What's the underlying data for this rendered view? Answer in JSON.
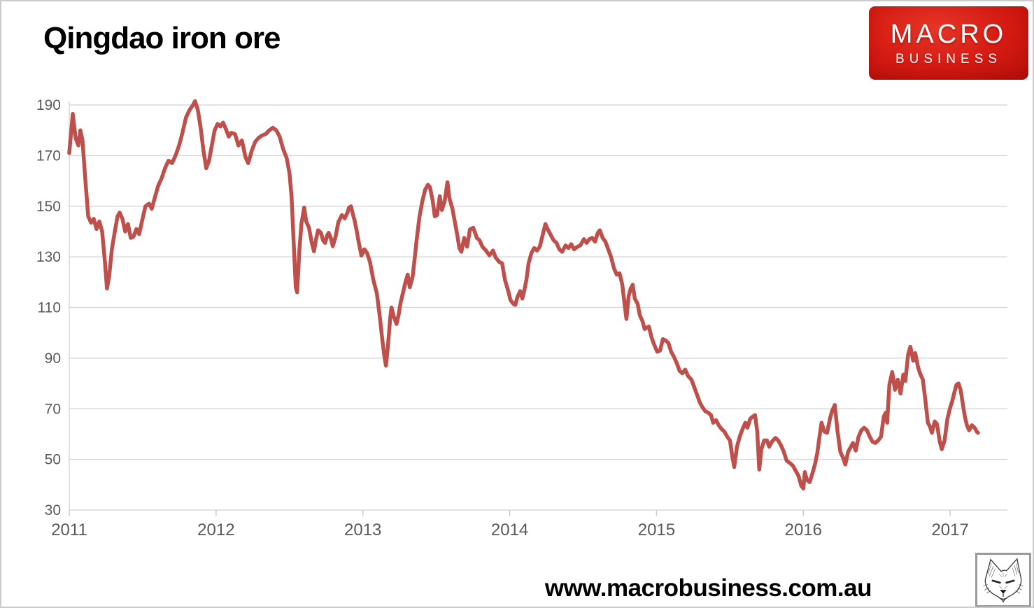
{
  "header": {
    "title": "Qingdao iron ore"
  },
  "logo": {
    "line1": "MACRO",
    "line2": "BUSINESS",
    "text_color": "#ffffff",
    "bg_gradient": [
      "#e73527",
      "#d41a12",
      "#b90f0a"
    ]
  },
  "footer": {
    "url": "www.macrobusiness.com.au",
    "icon": "fox-sketch-icon"
  },
  "chart_data": {
    "type": "line",
    "title": "Qingdao iron ore",
    "series_name": "Qingdao iron ore price",
    "xlabel": "",
    "ylabel": "",
    "x_ticks": [
      2011,
      2012,
      2013,
      2014,
      2015,
      2016,
      2017
    ],
    "y_ticks": [
      30,
      50,
      70,
      90,
      110,
      130,
      150,
      170,
      190
    ],
    "xlim": [
      2011,
      2017.39
    ],
    "ylim": [
      30,
      190
    ],
    "grid": true,
    "legend": false,
    "line_color": "#bf4f4b",
    "line_width": 5.5,
    "grid_color": "#d9d9d9",
    "tick_color": "#c9c9c9",
    "axis_label_color": "#595959",
    "points": [
      [
        2011.0,
        171
      ],
      [
        2011.014,
        180
      ],
      [
        2011.024,
        186.5
      ],
      [
        2011.043,
        177
      ],
      [
        2011.062,
        174
      ],
      [
        2011.076,
        180
      ],
      [
        2011.09,
        176
      ],
      [
        2011.11,
        160
      ],
      [
        2011.129,
        146
      ],
      [
        2011.148,
        143.5
      ],
      [
        2011.167,
        145
      ],
      [
        2011.186,
        141
      ],
      [
        2011.205,
        144
      ],
      [
        2011.224,
        140
      ],
      [
        2011.243,
        128
      ],
      [
        2011.257,
        117.5
      ],
      [
        2011.271,
        122
      ],
      [
        2011.29,
        133
      ],
      [
        2011.31,
        140
      ],
      [
        2011.329,
        146
      ],
      [
        2011.343,
        147.5
      ],
      [
        2011.362,
        145
      ],
      [
        2011.381,
        140
      ],
      [
        2011.4,
        143
      ],
      [
        2011.419,
        137.5
      ],
      [
        2011.438,
        138
      ],
      [
        2011.457,
        141
      ],
      [
        2011.476,
        139
      ],
      [
        2011.495,
        144
      ],
      [
        2011.519,
        150
      ],
      [
        2011.543,
        151
      ],
      [
        2011.562,
        149
      ],
      [
        2011.581,
        153
      ],
      [
        2011.605,
        158
      ],
      [
        2011.629,
        161
      ],
      [
        2011.652,
        165
      ],
      [
        2011.676,
        168
      ],
      [
        2011.7,
        167
      ],
      [
        2011.724,
        170
      ],
      [
        2011.748,
        174
      ],
      [
        2011.771,
        179
      ],
      [
        2011.795,
        185
      ],
      [
        2011.819,
        188
      ],
      [
        2011.843,
        190
      ],
      [
        2011.857,
        191.5
      ],
      [
        2011.876,
        188
      ],
      [
        2011.895,
        181
      ],
      [
        2011.914,
        172
      ],
      [
        2011.933,
        165
      ],
      [
        2011.952,
        168
      ],
      [
        2011.971,
        174
      ],
      [
        2011.99,
        180
      ],
      [
        2012.01,
        182.5
      ],
      [
        2012.029,
        181.5
      ],
      [
        2012.048,
        183
      ],
      [
        2012.067,
        180.5
      ],
      [
        2012.086,
        177.5
      ],
      [
        2012.105,
        179
      ],
      [
        2012.129,
        178.5
      ],
      [
        2012.152,
        174
      ],
      [
        2012.176,
        176
      ],
      [
        2012.2,
        169.5
      ],
      [
        2012.219,
        167
      ],
      [
        2012.243,
        172
      ],
      [
        2012.267,
        175.5
      ],
      [
        2012.29,
        177
      ],
      [
        2012.314,
        178
      ],
      [
        2012.338,
        178.5
      ],
      [
        2012.362,
        180
      ],
      [
        2012.386,
        181
      ],
      [
        2012.41,
        180
      ],
      [
        2012.433,
        177.5
      ],
      [
        2012.457,
        172.5
      ],
      [
        2012.481,
        169
      ],
      [
        2012.5,
        163
      ],
      [
        2012.514,
        154
      ],
      [
        2012.529,
        135
      ],
      [
        2012.543,
        118
      ],
      [
        2012.552,
        116
      ],
      [
        2012.567,
        132
      ],
      [
        2012.581,
        143
      ],
      [
        2012.6,
        149.5
      ],
      [
        2012.614,
        144
      ],
      [
        2012.633,
        141.5
      ],
      [
        2012.652,
        135.5
      ],
      [
        2012.667,
        132.2
      ],
      [
        2012.681,
        137
      ],
      [
        2012.695,
        140.5
      ],
      [
        2012.714,
        139.5
      ],
      [
        2012.729,
        136.5
      ],
      [
        2012.743,
        135.5
      ],
      [
        2012.757,
        138.5
      ],
      [
        2012.767,
        139.5
      ],
      [
        2012.781,
        137.5
      ],
      [
        2012.795,
        134.2
      ],
      [
        2012.814,
        138
      ],
      [
        2012.833,
        143.8
      ],
      [
        2012.857,
        146.5
      ],
      [
        2012.876,
        145.2
      ],
      [
        2012.895,
        147.5
      ],
      [
        2012.905,
        149.4
      ],
      [
        2012.919,
        150
      ],
      [
        2012.933,
        146.5
      ],
      [
        2012.943,
        144.5
      ],
      [
        2012.957,
        140.5
      ],
      [
        2012.971,
        136
      ],
      [
        2012.99,
        130.5
      ],
      [
        2013.01,
        133
      ],
      [
        2013.029,
        131.5
      ],
      [
        2013.048,
        128
      ],
      [
        2013.071,
        121
      ],
      [
        2013.095,
        115.5
      ],
      [
        2013.114,
        107
      ],
      [
        2013.133,
        97
      ],
      [
        2013.148,
        90
      ],
      [
        2013.157,
        87
      ],
      [
        2013.171,
        95
      ],
      [
        2013.186,
        106
      ],
      [
        2013.195,
        110
      ],
      [
        2013.21,
        106.5
      ],
      [
        2013.229,
        103.5
      ],
      [
        2013.243,
        107
      ],
      [
        2013.257,
        112
      ],
      [
        2013.276,
        116.5
      ],
      [
        2013.29,
        120
      ],
      [
        2013.305,
        123
      ],
      [
        2013.319,
        118
      ],
      [
        2013.338,
        122
      ],
      [
        2013.352,
        129
      ],
      [
        2013.367,
        137
      ],
      [
        2013.386,
        146
      ],
      [
        2013.405,
        152
      ],
      [
        2013.424,
        156.5
      ],
      [
        2013.443,
        158.5
      ],
      [
        2013.457,
        157.5
      ],
      [
        2013.476,
        152
      ],
      [
        2013.49,
        146
      ],
      [
        2013.505,
        146.5
      ],
      [
        2013.524,
        154
      ],
      [
        2013.538,
        148.5
      ],
      [
        2013.557,
        152
      ],
      [
        2013.576,
        159.5
      ],
      [
        2013.59,
        153
      ],
      [
        2013.61,
        149
      ],
      [
        2013.629,
        143
      ],
      [
        2013.643,
        138.5
      ],
      [
        2013.657,
        133.5
      ],
      [
        2013.671,
        132
      ],
      [
        2013.69,
        137.5
      ],
      [
        2013.71,
        134
      ],
      [
        2013.729,
        140.8
      ],
      [
        2013.752,
        141.5
      ],
      [
        2013.776,
        137.5
      ],
      [
        2013.795,
        136.5
      ],
      [
        2013.814,
        134
      ],
      [
        2013.838,
        132.5
      ],
      [
        2013.862,
        130.6
      ],
      [
        2013.886,
        132.5
      ],
      [
        2013.905,
        129.7
      ],
      [
        2013.929,
        128
      ],
      [
        2013.948,
        127.5
      ],
      [
        2013.967,
        121
      ],
      [
        2013.99,
        116.5
      ],
      [
        2014.005,
        113
      ],
      [
        2014.024,
        111.5
      ],
      [
        2014.038,
        111
      ],
      [
        2014.052,
        114
      ],
      [
        2014.071,
        116.5
      ],
      [
        2014.086,
        113.5
      ],
      [
        2014.1,
        117
      ],
      [
        2014.114,
        121
      ],
      [
        2014.129,
        127.5
      ],
      [
        2014.148,
        131.5
      ],
      [
        2014.167,
        133.5
      ],
      [
        2014.186,
        132.5
      ],
      [
        2014.205,
        134
      ],
      [
        2014.224,
        138.5
      ],
      [
        2014.243,
        143
      ],
      [
        2014.262,
        140.5
      ],
      [
        2014.281,
        138.5
      ],
      [
        2014.3,
        136.5
      ],
      [
        2014.319,
        135.5
      ],
      [
        2014.338,
        133
      ],
      [
        2014.357,
        132
      ],
      [
        2014.381,
        134.5
      ],
      [
        2014.4,
        133.5
      ],
      [
        2014.419,
        135
      ],
      [
        2014.438,
        133
      ],
      [
        2014.462,
        134
      ],
      [
        2014.481,
        134.5
      ],
      [
        2014.505,
        137
      ],
      [
        2014.524,
        135.5
      ],
      [
        2014.543,
        137
      ],
      [
        2014.562,
        137.5
      ],
      [
        2014.581,
        136
      ],
      [
        2014.6,
        139.5
      ],
      [
        2014.614,
        140.5
      ],
      [
        2014.633,
        137.5
      ],
      [
        2014.652,
        136
      ],
      [
        2014.671,
        133
      ],
      [
        2014.69,
        130
      ],
      [
        2014.71,
        125.5
      ],
      [
        2014.729,
        123
      ],
      [
        2014.748,
        123.5
      ],
      [
        2014.767,
        119
      ],
      [
        2014.781,
        112
      ],
      [
        2014.795,
        105.5
      ],
      [
        2014.81,
        114.5
      ],
      [
        2014.824,
        117.5
      ],
      [
        2014.838,
        119
      ],
      [
        2014.852,
        113.5
      ],
      [
        2014.871,
        111.5
      ],
      [
        2014.886,
        107
      ],
      [
        2014.905,
        104.5
      ],
      [
        2014.919,
        101.5
      ],
      [
        2014.933,
        102
      ],
      [
        2014.948,
        102.5
      ],
      [
        2014.967,
        98
      ],
      [
        2014.986,
        95
      ],
      [
        2015.005,
        92.5
      ],
      [
        2015.024,
        93
      ],
      [
        2015.043,
        97.5
      ],
      [
        2015.062,
        97
      ],
      [
        2015.081,
        96
      ],
      [
        2015.1,
        92.5
      ],
      [
        2015.119,
        90.5
      ],
      [
        2015.138,
        88
      ],
      [
        2015.157,
        85
      ],
      [
        2015.176,
        84
      ],
      [
        2015.195,
        85.5
      ],
      [
        2015.214,
        83
      ],
      [
        2015.238,
        81.5
      ],
      [
        2015.257,
        78.5
      ],
      [
        2015.276,
        75.5
      ],
      [
        2015.295,
        72.5
      ],
      [
        2015.314,
        70.5
      ],
      [
        2015.333,
        69
      ],
      [
        2015.352,
        68.5
      ],
      [
        2015.371,
        67.5
      ],
      [
        2015.386,
        64.5
      ],
      [
        2015.405,
        65.5
      ],
      [
        2015.424,
        63.5
      ],
      [
        2015.443,
        62
      ],
      [
        2015.462,
        61
      ],
      [
        2015.481,
        59
      ],
      [
        2015.5,
        57.5
      ],
      [
        2015.514,
        52
      ],
      [
        2015.529,
        47
      ],
      [
        2015.548,
        55
      ],
      [
        2015.567,
        59
      ],
      [
        2015.586,
        62
      ],
      [
        2015.605,
        64.5
      ],
      [
        2015.619,
        62.5
      ],
      [
        2015.638,
        66
      ],
      [
        2015.657,
        67
      ],
      [
        2015.671,
        67.5
      ],
      [
        2015.686,
        61
      ],
      [
        2015.7,
        46
      ],
      [
        2015.714,
        54
      ],
      [
        2015.733,
        57.5
      ],
      [
        2015.752,
        57.5
      ],
      [
        2015.767,
        55
      ],
      [
        2015.786,
        57
      ],
      [
        2015.81,
        58.5
      ],
      [
        2015.829,
        57.5
      ],
      [
        2015.848,
        55.5
      ],
      [
        2015.867,
        53
      ],
      [
        2015.886,
        49.5
      ],
      [
        2015.91,
        48.5
      ],
      [
        2015.929,
        47.5
      ],
      [
        2015.948,
        45.5
      ],
      [
        2015.967,
        43.5
      ],
      [
        2015.986,
        39.5
      ],
      [
        2016.0,
        38.5
      ],
      [
        2016.01,
        45
      ],
      [
        2016.024,
        42
      ],
      [
        2016.043,
        41
      ],
      [
        2016.062,
        44.5
      ],
      [
        2016.081,
        48.5
      ],
      [
        2016.095,
        52.5
      ],
      [
        2016.11,
        59
      ],
      [
        2016.124,
        64.5
      ],
      [
        2016.143,
        61
      ],
      [
        2016.162,
        60.5
      ],
      [
        2016.181,
        66
      ],
      [
        2016.195,
        69
      ],
      [
        2016.214,
        71.5
      ],
      [
        2016.233,
        61
      ],
      [
        2016.252,
        53
      ],
      [
        2016.271,
        50.5
      ],
      [
        2016.286,
        48
      ],
      [
        2016.305,
        53
      ],
      [
        2016.324,
        55
      ],
      [
        2016.338,
        56.5
      ],
      [
        2016.357,
        53.5
      ],
      [
        2016.376,
        59
      ],
      [
        2016.395,
        61.5
      ],
      [
        2016.414,
        62.5
      ],
      [
        2016.433,
        61.5
      ],
      [
        2016.452,
        59
      ],
      [
        2016.471,
        57
      ],
      [
        2016.49,
        56.5
      ],
      [
        2016.51,
        57.5
      ],
      [
        2016.529,
        59
      ],
      [
        2016.548,
        67
      ],
      [
        2016.562,
        68.5
      ],
      [
        2016.571,
        64.5
      ],
      [
        2016.586,
        79.5
      ],
      [
        2016.605,
        84.5
      ],
      [
        2016.624,
        77.5
      ],
      [
        2016.643,
        81.5
      ],
      [
        2016.662,
        76
      ],
      [
        2016.681,
        83.5
      ],
      [
        2016.695,
        81
      ],
      [
        2016.714,
        91.5
      ],
      [
        2016.729,
        94.5
      ],
      [
        2016.748,
        89
      ],
      [
        2016.762,
        92
      ],
      [
        2016.781,
        86.5
      ],
      [
        2016.795,
        84
      ],
      [
        2016.814,
        81.5
      ],
      [
        2016.833,
        72.5
      ],
      [
        2016.848,
        64.5
      ],
      [
        2016.862,
        63
      ],
      [
        2016.876,
        60.5
      ],
      [
        2016.895,
        65
      ],
      [
        2016.91,
        64
      ],
      [
        2016.929,
        57
      ],
      [
        2016.943,
        54
      ],
      [
        2016.962,
        57.5
      ],
      [
        2016.981,
        66
      ],
      [
        2017.0,
        70.5
      ],
      [
        2017.014,
        73
      ],
      [
        2017.029,
        76.5
      ],
      [
        2017.043,
        79.5
      ],
      [
        2017.057,
        80
      ],
      [
        2017.071,
        77.5
      ],
      [
        2017.086,
        72
      ],
      [
        2017.1,
        67
      ],
      [
        2017.114,
        63.5
      ],
      [
        2017.129,
        61.5
      ],
      [
        2017.148,
        63.5
      ],
      [
        2017.167,
        62.5
      ],
      [
        2017.181,
        61
      ],
      [
        2017.19,
        60.5
      ]
    ]
  }
}
